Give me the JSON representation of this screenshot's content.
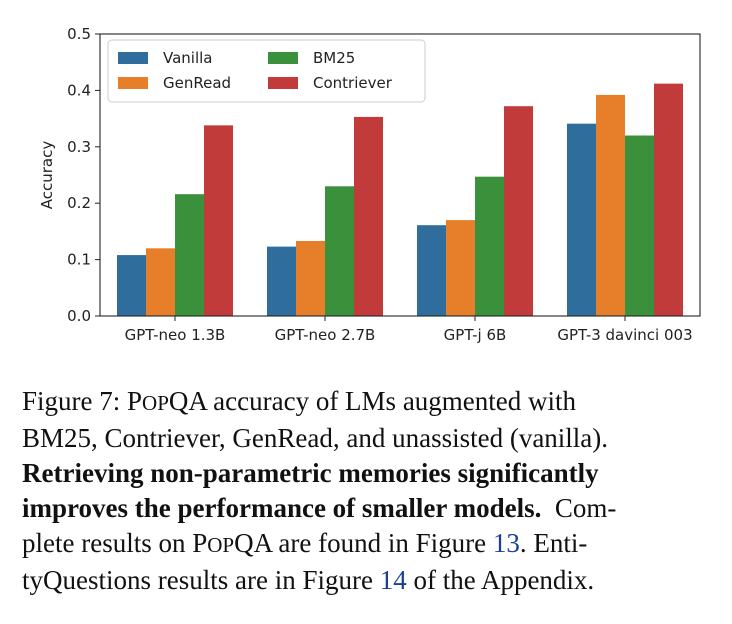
{
  "chart_data": {
    "type": "bar",
    "title": "",
    "xlabel": "",
    "ylabel": "Accuracy",
    "ylim": [
      0,
      0.5
    ],
    "yticks": [
      "0.0",
      "0.1",
      "0.2",
      "0.3",
      "0.4",
      "0.5"
    ],
    "categories": [
      "GPT-neo 1.3B",
      "GPT-neo 2.7B",
      "GPT-j 6B",
      "GPT-3 davinci 003"
    ],
    "series": [
      {
        "name": "Vanilla",
        "color": "#2f6d9c",
        "values": [
          0.108,
          0.123,
          0.161,
          0.341
        ]
      },
      {
        "name": "GenRead",
        "color": "#e67e2a",
        "values": [
          0.12,
          0.133,
          0.17,
          0.392
        ]
      },
      {
        "name": "BM25",
        "color": "#3b903b",
        "values": [
          0.216,
          0.23,
          0.247,
          0.32
        ]
      },
      {
        "name": "Contriever",
        "color": "#c23b3b",
        "values": [
          0.338,
          0.353,
          0.372,
          0.412
        ]
      }
    ],
    "legend_order": [
      "Vanilla",
      "GenRead",
      "BM25",
      "Contriever"
    ],
    "legend_placement": "top-left"
  },
  "caption": {
    "label": "Figure 7: ",
    "popqa_prefix": "P",
    "popqa_smallcaps": "OP",
    "popqa_suffix": "QA",
    "line1_rest": " accuracy of LMs augmented with",
    "line2": "BM25, Contriever, GenRead, and unassisted (vanilla).",
    "bold_line1": "Retrieving non-parametric memories significantly",
    "bold_line2": "improves the performance of smaller models.",
    "line4_tail": "  Com-",
    "line5_pre": "plete results on ",
    "line5_mid": " are found in Figure ",
    "fig13": "13",
    "line5_post": ". Enti-",
    "line6_pre": "tyQuestions results are in Figure ",
    "fig14": "14",
    "line6_post": " of the Appendix."
  }
}
